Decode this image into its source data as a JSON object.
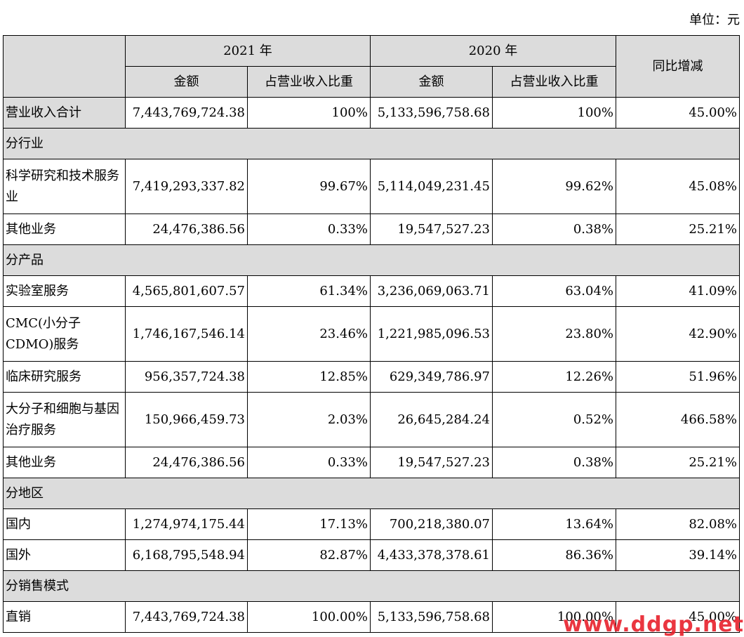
{
  "unit": "单位：元",
  "header": {
    "year1": "2021 年",
    "year2": "2020 年",
    "yoy": "同比增减",
    "amount": "金额",
    "share": "占营业收入比重"
  },
  "rows": [
    {
      "type": "data",
      "label": "营业收入合计",
      "a1": "7,443,769,724.38",
      "p1": "100%",
      "a2": "5,133,596,758.68",
      "p2": "100%",
      "yoy": "45.00%",
      "grey": true
    },
    {
      "type": "section",
      "label": "分行业"
    },
    {
      "type": "data",
      "label": "科学研究和技术服务业",
      "a1": "7,419,293,337.82",
      "p1": "99.67%",
      "a2": "5,114,049,231.45",
      "p2": "99.62%",
      "yoy": "45.08%"
    },
    {
      "type": "data",
      "label": "其他业务",
      "a1": "24,476,386.56",
      "p1": "0.33%",
      "a2": "19,547,527.23",
      "p2": "0.38%",
      "yoy": "25.21%"
    },
    {
      "type": "section",
      "label": "分产品"
    },
    {
      "type": "data",
      "label": "实验室服务",
      "a1": "4,565,801,607.57",
      "p1": "61.34%",
      "a2": "3,236,069,063.71",
      "p2": "63.04%",
      "yoy": "41.09%"
    },
    {
      "type": "data",
      "label": "CMC(小分子CDMO)服务",
      "a1": "1,746,167,546.14",
      "p1": "23.46%",
      "a2": "1,221,985,096.53",
      "p2": "23.80%",
      "yoy": "42.90%"
    },
    {
      "type": "data",
      "label": "临床研究服务",
      "a1": "956,357,724.38",
      "p1": "12.85%",
      "a2": "629,349,786.97",
      "p2": "12.26%",
      "yoy": "51.96%"
    },
    {
      "type": "data",
      "label": "大分子和细胞与基因治疗服务",
      "a1": "150,966,459.73",
      "p1": "2.03%",
      "a2": "26,645,284.24",
      "p2": "0.52%",
      "yoy": "466.58%"
    },
    {
      "type": "data",
      "label": "其他业务",
      "a1": "24,476,386.56",
      "p1": "0.33%",
      "a2": "19,547,527.23",
      "p2": "0.38%",
      "yoy": "25.21%"
    },
    {
      "type": "section",
      "label": "分地区"
    },
    {
      "type": "data",
      "label": "国内",
      "a1": "1,274,974,175.44",
      "p1": "17.13%",
      "a2": "700,218,380.07",
      "p2": "13.64%",
      "yoy": "82.08%"
    },
    {
      "type": "data",
      "label": "国外",
      "a1": "6,168,795,548.94",
      "p1": "82.87%",
      "a2": "4,433,378,378.61",
      "p2": "86.36%",
      "yoy": "39.14%"
    },
    {
      "type": "section",
      "label": "分销售模式"
    },
    {
      "type": "data",
      "label": "直销",
      "a1": "7,443,769,724.38",
      "p1": "100.00%",
      "a2": "5,133,596,758.68",
      "p2": "100.00%",
      "yoy": "45.00%"
    }
  ],
  "watermark": "www.ddgp.net"
}
